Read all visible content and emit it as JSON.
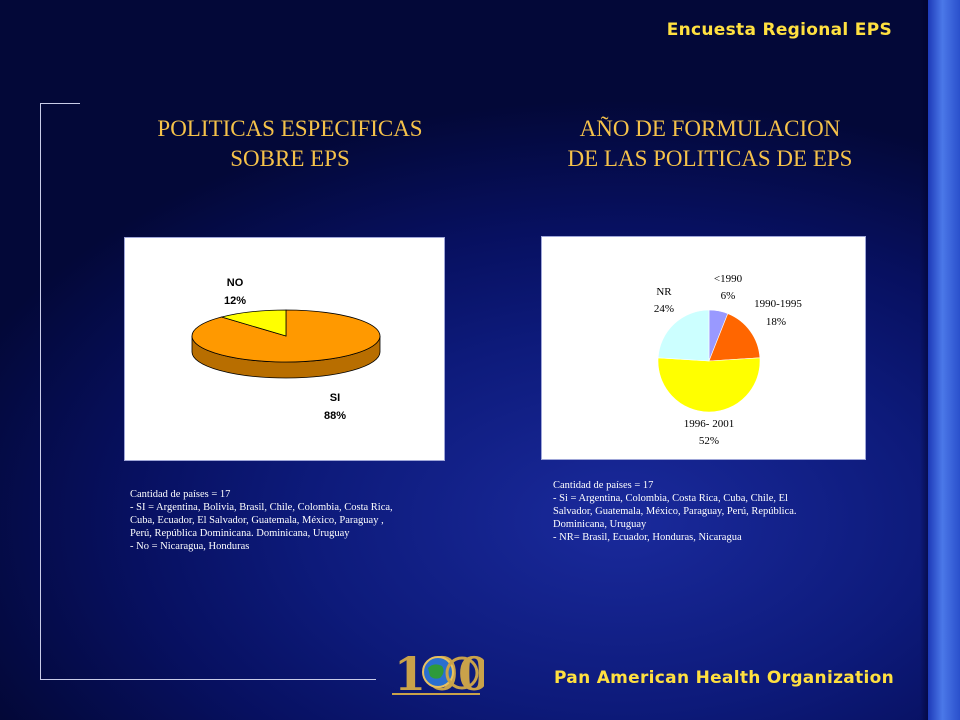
{
  "header": {
    "title": "Encuesta Regional EPS"
  },
  "footer": {
    "organization": "Pan American Health Organization"
  },
  "left_panel": {
    "title_lines": [
      "POLITICAS ESPECIFICAS",
      "SOBRE EPS"
    ],
    "notes": [
      "Cantidad de países = 17",
      "- SI = Argentina, Bolivia,  Brasil, Chile, Colombia,  Costa Rica,",
      "Cuba, Ecuador, El Salvador, Guatemala, México, Paraguay ,",
      "Perú, República Dominicana. Dominicana,   Uruguay",
      "- No =  Nicaragua, Honduras"
    ]
  },
  "right_panel": {
    "title_lines": [
      "AÑO DE FORMULACION",
      "DE LAS POLITICAS DE EPS"
    ],
    "notes": [
      "Cantidad de países = 17",
      "- Si = Argentina,  Colombia,  Costa Rica, Cuba, Chile, El",
      "Salvador, Guatemala, México, Paraguay,  Perú, República.",
      "Dominicana,  Uruguay",
      "- NR= Brasil,  Ecuador, Honduras, Nicaragua"
    ]
  },
  "chart_data": [
    {
      "type": "pie",
      "style": "3d",
      "labels": [
        "SI",
        "NO"
      ],
      "values": [
        88,
        12
      ],
      "value_labels": [
        "88%",
        "12%"
      ],
      "colors": [
        "#ff9900",
        "#ffff00"
      ]
    },
    {
      "type": "pie",
      "labels": [
        "<1990",
        "1990-1995",
        "1996- 2001",
        "NR"
      ],
      "values": [
        6,
        18,
        52,
        24
      ],
      "value_labels": [
        "6%",
        "18%",
        "52%",
        "24%"
      ],
      "colors": [
        "#9999ff",
        "#ff6600",
        "#ffff00",
        "#ccffff"
      ]
    }
  ],
  "logo": {
    "text": "100"
  }
}
